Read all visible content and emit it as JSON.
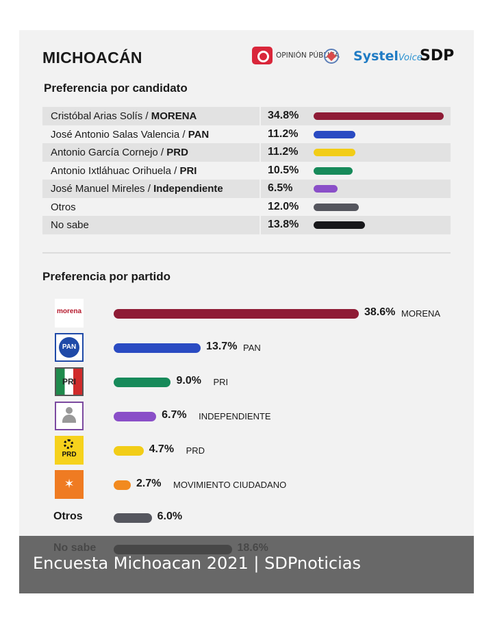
{
  "header": {
    "title": "MICHOACÁN",
    "logos": [
      {
        "icon": "opinion-publica-logo",
        "text": "OPINIÓN PÚBLICA"
      },
      {
        "icon": "emblem-logo"
      },
      {
        "icon": "systel-voice-logo",
        "text": "Systel",
        "suffix": "Voice"
      },
      {
        "icon": "sdp-logo",
        "text": "SDP"
      }
    ]
  },
  "chart_data": [
    {
      "type": "bar",
      "title": "Preferencia por candidato",
      "categories": [
        "Cristóbal Arias Solís / MORENA",
        "José Antonio Salas Valencia / PAN",
        "Antonio García Cornejo / PRD",
        "Antonio Ixtláhuac Orihuela / PRI",
        "José Manuel Mireles / Independiente",
        "Otros",
        "No sabe"
      ],
      "rows": [
        {
          "name": "Cristóbal Arias Solís",
          "party": "MORENA",
          "value": 34.8,
          "label": "34.8%",
          "color": "#8e1b35"
        },
        {
          "name": "José Antonio Salas Valencia",
          "party": "PAN",
          "value": 11.2,
          "label": "11.2%",
          "color": "#2a4bc2"
        },
        {
          "name": "Antonio García Cornejo",
          "party": "PRD",
          "value": 11.2,
          "label": "11.2%",
          "color": "#f2cd17"
        },
        {
          "name": "Antonio Ixtláhuac Orihuela",
          "party": "PRI",
          "value": 10.5,
          "label": "10.5%",
          "color": "#178a5a"
        },
        {
          "name": "José Manuel Mireles",
          "party": "Independiente",
          "value": 6.5,
          "label": "6.5%",
          "color": "#8a4fc8"
        },
        {
          "name": "Otros",
          "party": "",
          "value": 12.0,
          "label": "12.0%",
          "color": "#55565e"
        },
        {
          "name": "No sabe",
          "party": "",
          "value": 13.8,
          "label": "13.8%",
          "color": "#17171a"
        }
      ],
      "values": [
        34.8,
        11.2,
        11.2,
        10.5,
        6.5,
        12.0,
        13.8
      ]
    },
    {
      "type": "bar",
      "title": "Preferencia por partido",
      "categories": [
        "MORENA",
        "PAN",
        "PRI",
        "INDEPENDIENTE",
        "PRD",
        "MOVIMIENTO CIUDADANO",
        "Otros",
        "No sabe"
      ],
      "rows": [
        {
          "name": "MORENA",
          "value": 38.6,
          "label": "38.6%",
          "color": "#8e1b35",
          "logo": "morena-logo",
          "logo_text": "morena"
        },
        {
          "name": "PAN",
          "value": 13.7,
          "label": "13.7%",
          "color": "#2a4bc2",
          "logo": "pan-logo",
          "logo_text": "PAN"
        },
        {
          "name": "PRI",
          "value": 9.0,
          "label": "9.0%",
          "color": "#178a5a",
          "logo": "pri-logo",
          "logo_text": "PRI"
        },
        {
          "name": "INDEPENDIENTE",
          "value": 6.7,
          "label": "6.7%",
          "color": "#8a4fc8",
          "logo": "independiente-logo"
        },
        {
          "name": "PRD",
          "value": 4.7,
          "label": "4.7%",
          "color": "#f2cd17",
          "logo": "prd-logo",
          "logo_text": "PRD"
        },
        {
          "name": "MOVIMIENTO CIUDADANO",
          "value": 2.7,
          "label": "2.7%",
          "color": "#f28a1f",
          "logo": "movimiento-ciudadano-logo"
        },
        {
          "name": "Otros",
          "value": 6.0,
          "label": "6.0%",
          "color": "#55565e",
          "text_label": "Otros"
        },
        {
          "name": "No sabe",
          "value": 18.6,
          "label": "18.6%",
          "color": "#17171a",
          "text_label": "No sabe"
        }
      ],
      "values": [
        38.6,
        13.7,
        9.0,
        6.7,
        4.7,
        2.7,
        6.0,
        18.6
      ]
    }
  ],
  "caption": "Encuesta Michoacan 2021  |  SDPnoticias"
}
